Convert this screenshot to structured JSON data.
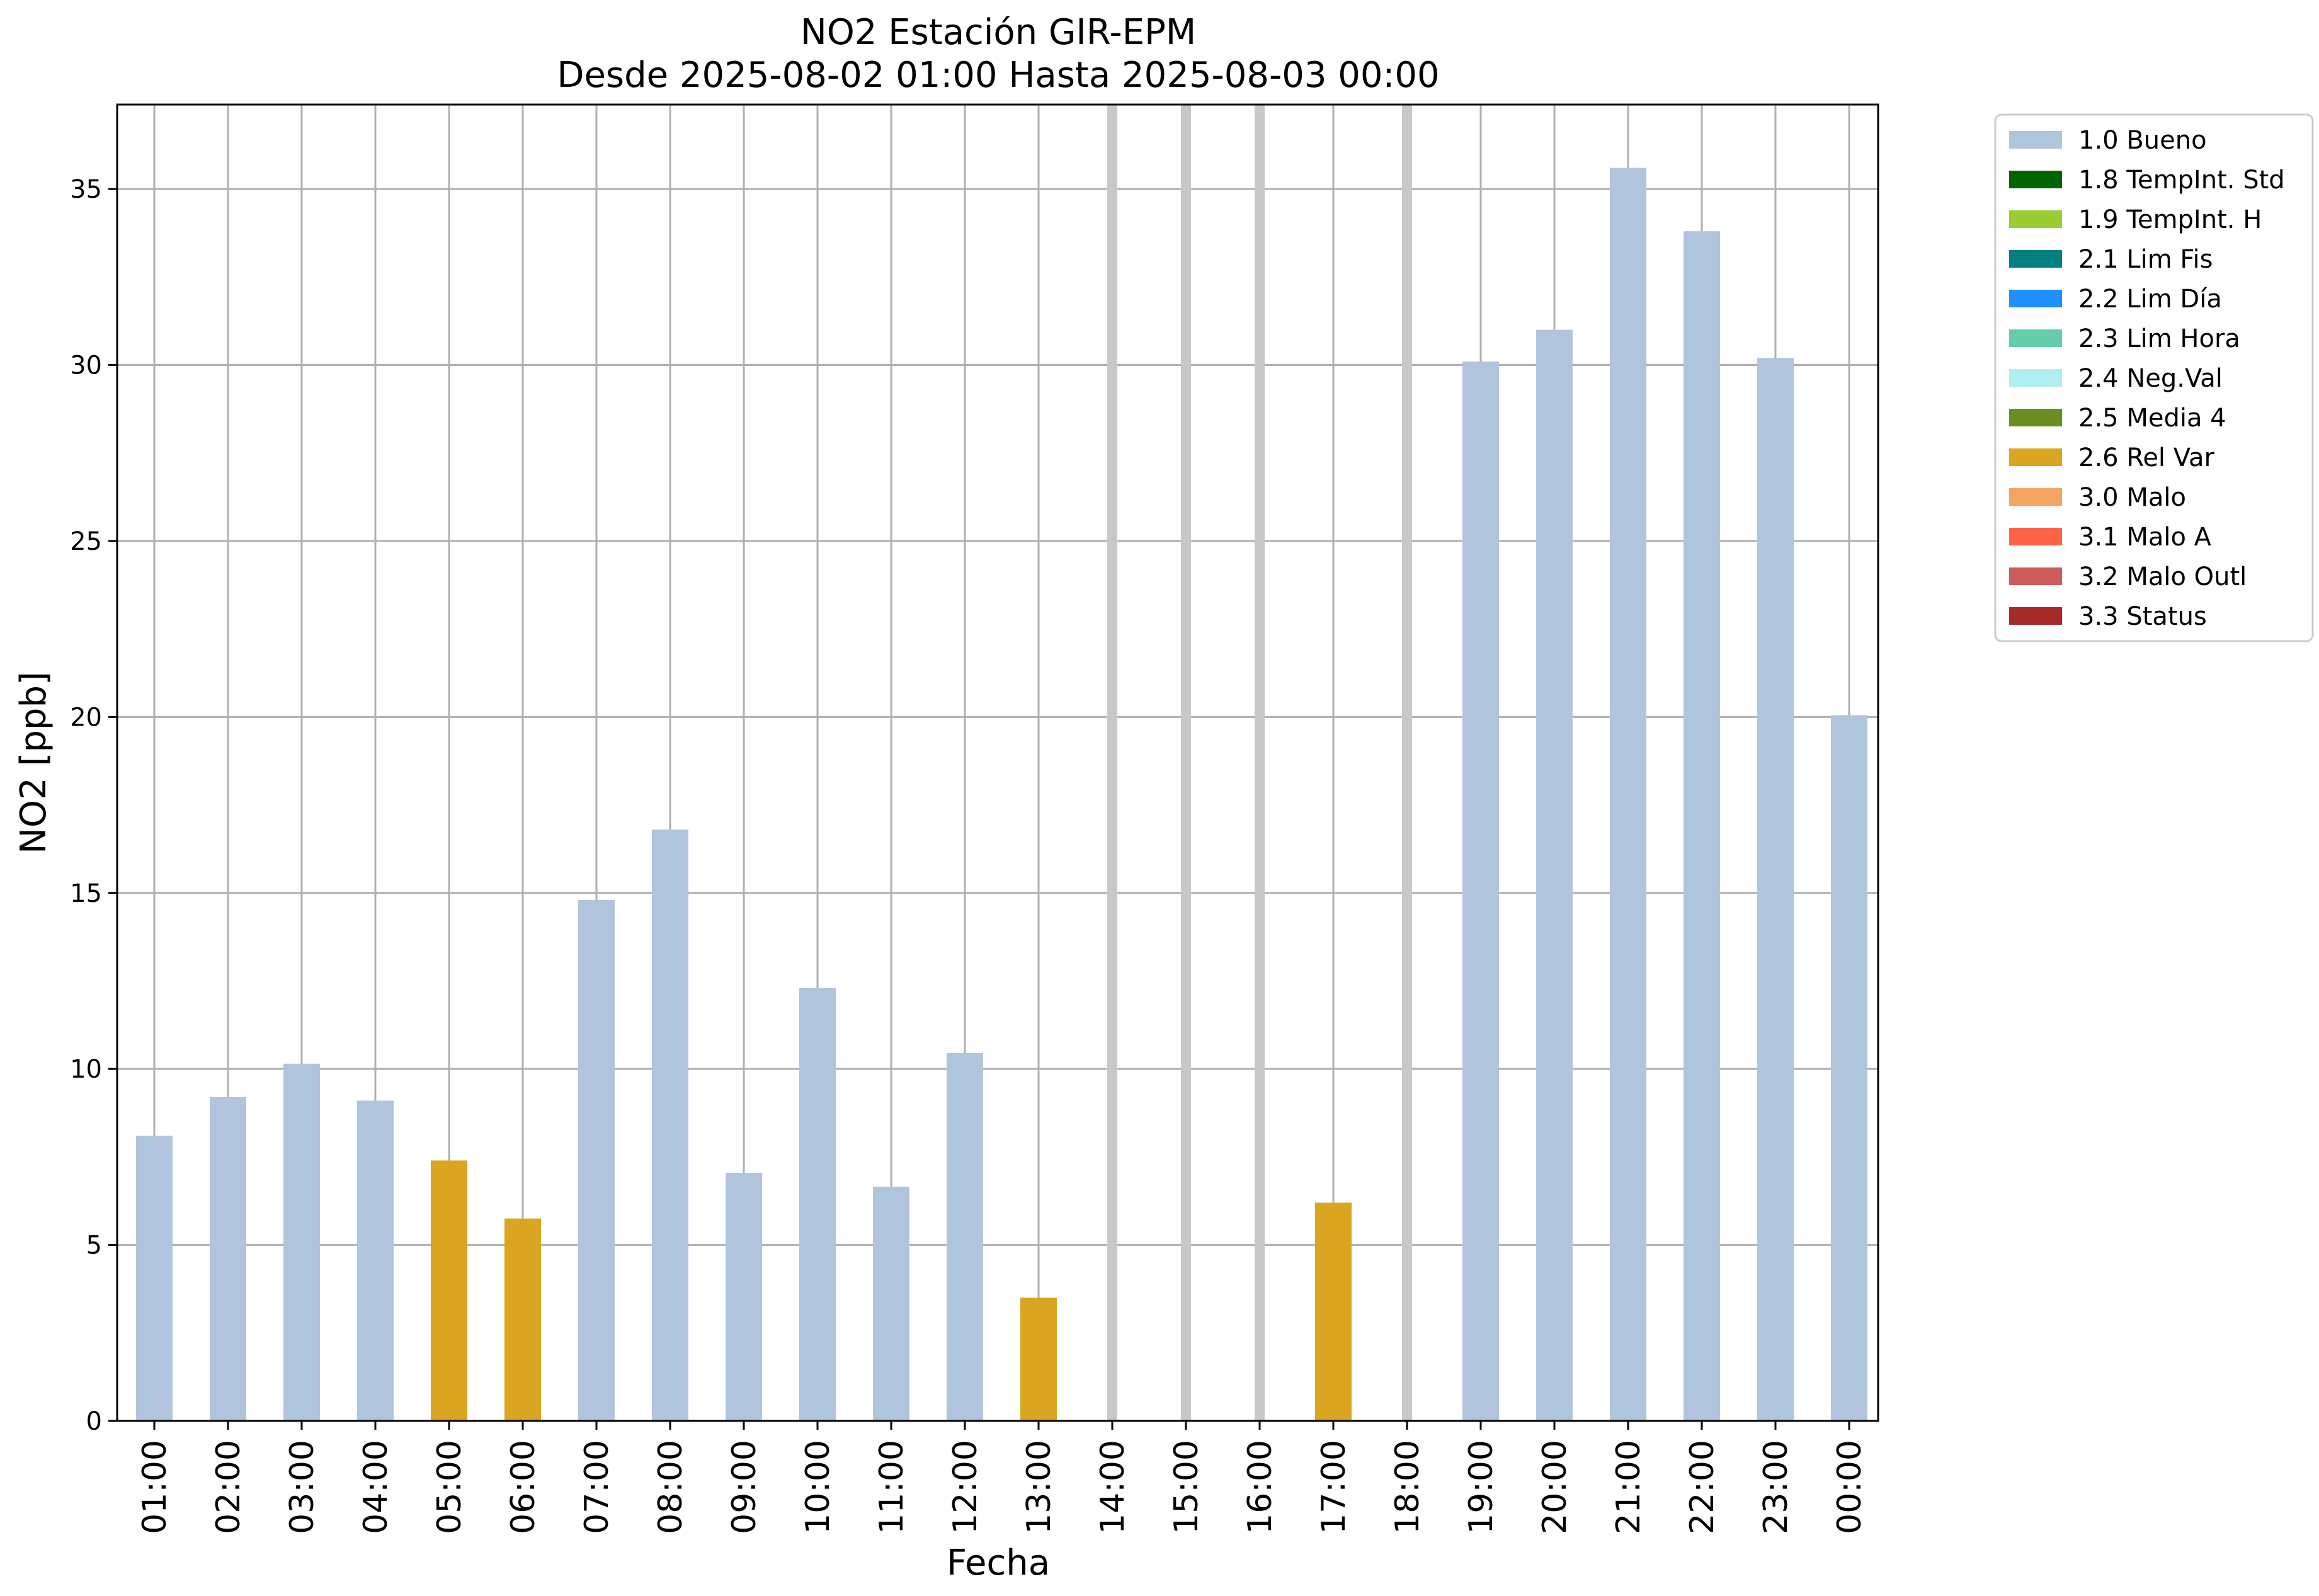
{
  "chart_data": {
    "type": "bar",
    "title": "NO2 Estación GIR-EPM",
    "subtitle": "Desde 2025-08-02 01:00 Hasta 2025-08-03 00:00",
    "xlabel": "Fecha",
    "ylabel": "NO2 [ppb]",
    "ylim": [
      0,
      37.4
    ],
    "yticks": [
      0,
      5,
      10,
      15,
      20,
      25,
      30,
      35
    ],
    "grid": true,
    "legend_position": "outside-top-right",
    "categories": [
      "01:00",
      "02:00",
      "03:00",
      "04:00",
      "05:00",
      "06:00",
      "07:00",
      "08:00",
      "09:00",
      "10:00",
      "11:00",
      "12:00",
      "13:00",
      "14:00",
      "15:00",
      "16:00",
      "17:00",
      "18:00",
      "19:00",
      "20:00",
      "21:00",
      "22:00",
      "23:00",
      "00:00"
    ],
    "values": [
      8.1,
      9.2,
      10.15,
      9.1,
      7.4,
      5.75,
      14.8,
      16.8,
      7.05,
      12.3,
      6.65,
      10.45,
      3.5,
      null,
      null,
      null,
      6.2,
      null,
      30.1,
      31.0,
      35.6,
      33.8,
      30.2,
      20.05
    ],
    "flags": [
      "1.0 Bueno",
      "1.0 Bueno",
      "1.0 Bueno",
      "1.0 Bueno",
      "2.6 Rel Var",
      "2.6 Rel Var",
      "1.0 Bueno",
      "1.0 Bueno",
      "1.0 Bueno",
      "1.0 Bueno",
      "1.0 Bueno",
      "1.0 Bueno",
      "2.6 Rel Var",
      null,
      null,
      null,
      "2.6 Rel Var",
      null,
      "1.0 Bueno",
      "1.0 Bueno",
      "1.0 Bueno",
      "1.0 Bueno",
      "1.0 Bueno",
      "1.0 Bueno"
    ],
    "legend": [
      {
        "label": "1.0 Bueno",
        "color": "#b0c4de"
      },
      {
        "label": "1.8 TempInt. Std",
        "color": "#006400"
      },
      {
        "label": "1.9 TempInt. H",
        "color": "#9acd32"
      },
      {
        "label": "2.1 Lim Fis",
        "color": "#008080"
      },
      {
        "label": "2.2 Lim Día",
        "color": "#1e90ff"
      },
      {
        "label": "2.3 Lim Hora",
        "color": "#66cdaa"
      },
      {
        "label": "2.4 Neg.Val",
        "color": "#afeeee"
      },
      {
        "label": "2.5 Media 4",
        "color": "#6b8e23"
      },
      {
        "label": "2.6 Rel Var",
        "color": "#daa520"
      },
      {
        "label": "3.0 Malo",
        "color": "#f4a460"
      },
      {
        "label": "3.1 Malo A",
        "color": "#ff6347"
      },
      {
        "label": "3.2 Malo Outl",
        "color": "#cd5c5c"
      },
      {
        "label": "3.3 Status",
        "color": "#a52a2a"
      }
    ]
  }
}
